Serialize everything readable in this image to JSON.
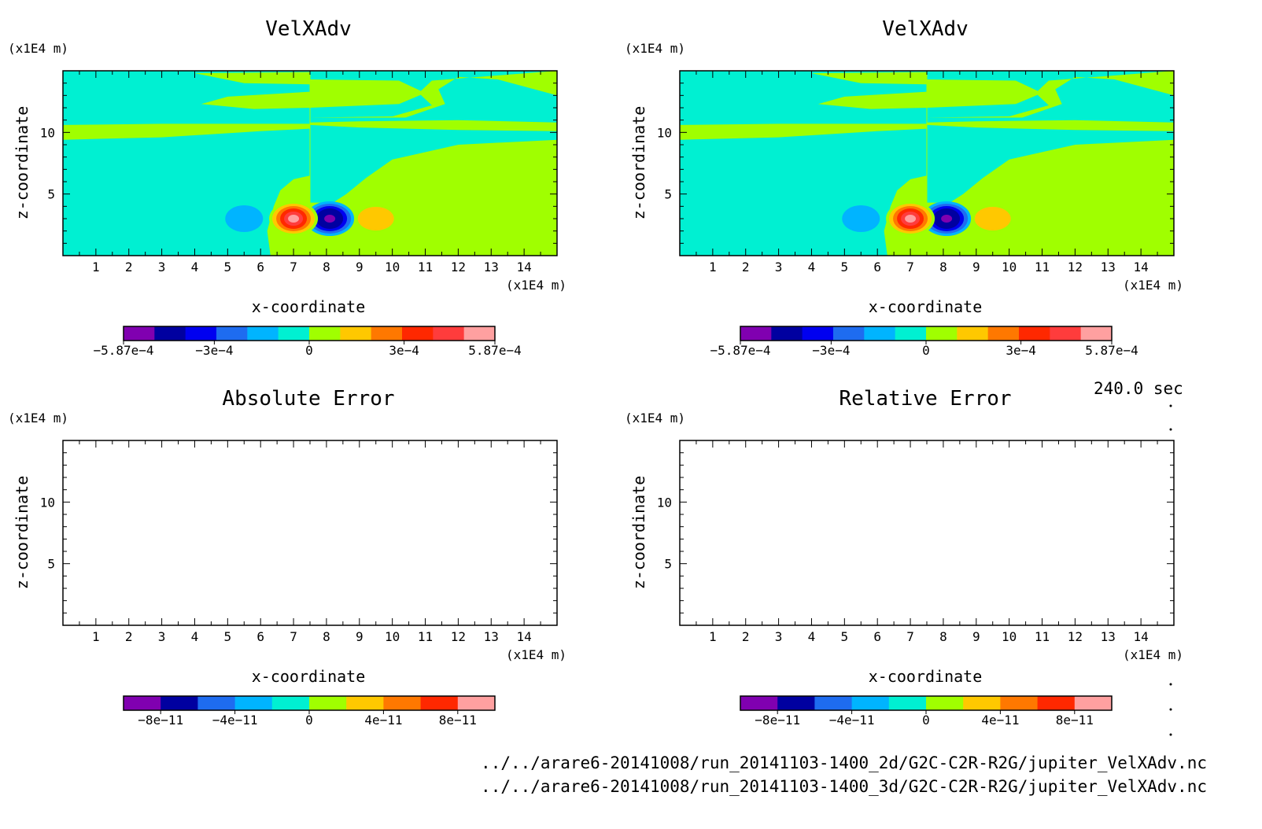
{
  "time_label": "240.0 sec",
  "file_paths": [
    "../../arare6-20141008/run_20141103-1400_2d/G2C-C2R-R2G/jupiter_VelXAdv.nc",
    "../../arare6-20141008/run_20141103-1400_3d/G2C-C2R-R2G/jupiter_VelXAdv.nc"
  ],
  "colors": {
    "levels_10": [
      "#8000b0",
      "#0000a0",
      "#0000f0",
      "#1e6cf0",
      "#00b4ff",
      "#00f0d2",
      "#a0ff00",
      "#ffc800",
      "#ff7800",
      "#ff2800",
      "#ff3c3c",
      "#ffa0a0"
    ],
    "background_field": "#00f0d2",
    "positive_field": "#a0ff00"
  },
  "chart_data": [
    {
      "type": "heatmap",
      "title": "VelXAdv",
      "xlabel": "x-coordinate",
      "ylabel": "z-coordinate",
      "x_unit": "(x1E4 m)",
      "y_unit": "(x1E4 m)",
      "xlim": [
        0,
        15
      ],
      "ylim": [
        0,
        15
      ],
      "x_ticks": [
        1,
        2,
        3,
        4,
        5,
        6,
        7,
        8,
        9,
        10,
        11,
        12,
        13,
        14
      ],
      "y_ticks": [
        5,
        10
      ],
      "colorbar": {
        "levels": 12,
        "ticks": [
          "-5.87e-4",
          "-3e-4",
          "0",
          "3e-4",
          "5.87e-4"
        ],
        "range": [
          -0.000587,
          0.000587
        ]
      },
      "features": [
        {
          "kind": "negative-core",
          "x": 8.1,
          "z": 3.0
        },
        {
          "kind": "positive-core",
          "x": 7.0,
          "z": 3.0
        },
        {
          "kind": "weak-negative-lobe",
          "x": 5.5,
          "z": 3.0
        },
        {
          "kind": "weak-positive-lobe",
          "x": 9.5,
          "z": 3.0
        }
      ]
    },
    {
      "type": "heatmap",
      "title": "VelXAdv",
      "xlabel": "x-coordinate",
      "ylabel": "z-coordinate",
      "x_unit": "(x1E4 m)",
      "y_unit": "(x1E4 m)",
      "xlim": [
        0,
        15
      ],
      "ylim": [
        0,
        15
      ],
      "x_ticks": [
        1,
        2,
        3,
        4,
        5,
        6,
        7,
        8,
        9,
        10,
        11,
        12,
        13,
        14
      ],
      "y_ticks": [
        5,
        10
      ],
      "colorbar": {
        "levels": 12,
        "ticks": [
          "-5.87e-4",
          "-3e-4",
          "0",
          "3e-4",
          "5.87e-4"
        ],
        "range": [
          -0.000587,
          0.000587
        ]
      },
      "features": [
        {
          "kind": "negative-core",
          "x": 8.1,
          "z": 3.0
        },
        {
          "kind": "positive-core",
          "x": 7.0,
          "z": 3.0
        },
        {
          "kind": "weak-negative-lobe",
          "x": 5.5,
          "z": 3.0
        },
        {
          "kind": "weak-positive-lobe",
          "x": 9.5,
          "z": 3.0
        }
      ]
    },
    {
      "type": "heatmap",
      "title": "Absolute Error",
      "xlabel": "x-coordinate",
      "ylabel": "z-coordinate",
      "x_unit": "(x1E4 m)",
      "y_unit": "(x1E4 m)",
      "xlim": [
        0,
        15
      ],
      "ylim": [
        0,
        15
      ],
      "x_ticks": [
        1,
        2,
        3,
        4,
        5,
        6,
        7,
        8,
        9,
        10,
        11,
        12,
        13,
        14
      ],
      "y_ticks": [
        5,
        10
      ],
      "colorbar": {
        "levels": 10,
        "ticks": [
          "-8e-11",
          "-4e-11",
          "0",
          "4e-11",
          "8e-11"
        ],
        "range": [
          -1e-10,
          1e-10
        ]
      },
      "features": []
    },
    {
      "type": "heatmap",
      "title": "Relative Error",
      "xlabel": "x-coordinate",
      "ylabel": "z-coordinate",
      "x_unit": "(x1E4 m)",
      "y_unit": "(x1E4 m)",
      "xlim": [
        0,
        15
      ],
      "ylim": [
        0,
        15
      ],
      "x_ticks": [
        1,
        2,
        3,
        4,
        5,
        6,
        7,
        8,
        9,
        10,
        11,
        12,
        13,
        14
      ],
      "y_ticks": [
        5,
        10
      ],
      "colorbar": {
        "levels": 10,
        "ticks": [
          "-8e-11",
          "-4e-11",
          "0",
          "4e-11",
          "8e-11"
        ],
        "range": [
          -1e-10,
          1e-10
        ]
      },
      "features": []
    }
  ]
}
